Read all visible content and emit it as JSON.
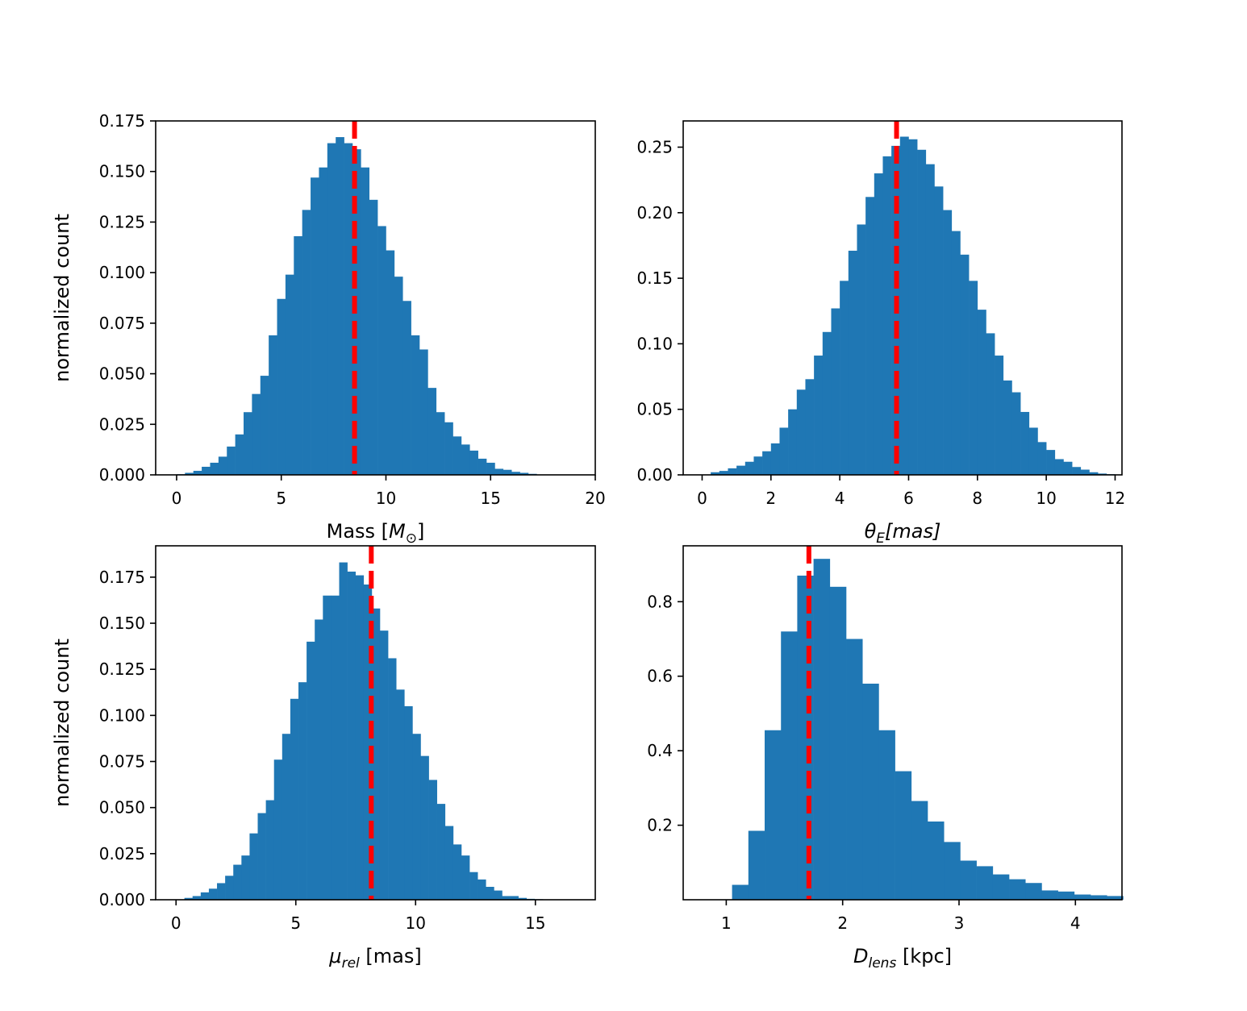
{
  "colors": {
    "bar": "#1f77b4",
    "marker": "#ff0000",
    "axis": "#000000"
  },
  "chart_data": [
    {
      "type": "bar",
      "panel": "top-left",
      "title": "",
      "xlabel": "Mass [M_sun]",
      "xlabel_text": "Mass [",
      "xlabel_symbol": "M",
      "xlabel_sub": "⊙",
      "xlabel_tail": "]",
      "ylabel": "normalized count",
      "xlim": [
        -1,
        20
      ],
      "ylim": [
        0,
        0.175
      ],
      "xticks": [
        0,
        5,
        10,
        15,
        20
      ],
      "xtick_labels": [
        "0",
        "5",
        "10",
        "15",
        "20"
      ],
      "yticks": [
        0,
        0.025,
        0.05,
        0.075,
        0.1,
        0.125,
        0.15,
        0.175
      ],
      "ytick_labels": [
        "0.000",
        "0.025",
        "0.050",
        "0.075",
        "0.100",
        "0.125",
        "0.150",
        "0.175"
      ],
      "bin_start": 0.0,
      "bin_width": 0.4,
      "values": [
        0.0003,
        0.001,
        0.002,
        0.004,
        0.006,
        0.009,
        0.014,
        0.02,
        0.031,
        0.04,
        0.049,
        0.069,
        0.087,
        0.099,
        0.118,
        0.131,
        0.147,
        0.152,
        0.164,
        0.167,
        0.164,
        0.161,
        0.152,
        0.136,
        0.123,
        0.111,
        0.098,
        0.086,
        0.069,
        0.062,
        0.043,
        0.031,
        0.026,
        0.019,
        0.015,
        0.012,
        0.008,
        0.006,
        0.003,
        0.0025,
        0.0015,
        0.001,
        0.0005,
        0.0002,
        0.0001
      ],
      "marker": 8.5
    },
    {
      "type": "bar",
      "panel": "top-right",
      "title": "",
      "xlabel": "θ_E[mas]",
      "xlabel_text": "",
      "xlabel_symbol": "θ",
      "xlabel_sub": "E",
      "xlabel_tail": "[mas]",
      "xlabel_tail_italic": true,
      "ylabel": "",
      "xlim": [
        -0.55,
        12.2
      ],
      "ylim": [
        0,
        0.27
      ],
      "xticks": [
        0,
        2,
        4,
        6,
        8,
        10,
        12
      ],
      "xtick_labels": [
        "0",
        "2",
        "4",
        "6",
        "8",
        "10",
        "12"
      ],
      "yticks": [
        0,
        0.05,
        0.1,
        0.15,
        0.2,
        0.25
      ],
      "ytick_labels": [
        "0.00",
        "0.05",
        "0.10",
        "0.15",
        "0.20",
        "0.25"
      ],
      "bin_start": 0.25,
      "bin_width": 0.25,
      "values": [
        0.002,
        0.003,
        0.005,
        0.007,
        0.01,
        0.014,
        0.018,
        0.024,
        0.036,
        0.05,
        0.065,
        0.073,
        0.091,
        0.109,
        0.127,
        0.148,
        0.171,
        0.191,
        0.212,
        0.23,
        0.243,
        0.251,
        0.258,
        0.256,
        0.248,
        0.237,
        0.22,
        0.202,
        0.186,
        0.168,
        0.148,
        0.126,
        0.108,
        0.091,
        0.072,
        0.063,
        0.048,
        0.036,
        0.025,
        0.019,
        0.012,
        0.01,
        0.006,
        0.004,
        0.002,
        0.001,
        0.0005
      ],
      "marker": 5.65
    },
    {
      "type": "bar",
      "panel": "bottom-left",
      "title": "",
      "xlabel": "μ_rel [mas]",
      "xlabel_text": "",
      "xlabel_symbol": "μ",
      "xlabel_sub": "rel",
      "xlabel_tail": " [mas]",
      "ylabel": "normalized count",
      "xlim": [
        -0.85,
        17.5
      ],
      "ylim": [
        0,
        0.192
      ],
      "xticks": [
        0,
        5,
        10,
        15
      ],
      "xtick_labels": [
        "0",
        "5",
        "10",
        "15"
      ],
      "yticks": [
        0,
        0.025,
        0.05,
        0.075,
        0.1,
        0.125,
        0.15,
        0.175
      ],
      "ytick_labels": [
        "0.000",
        "0.025",
        "0.050",
        "0.075",
        "0.100",
        "0.125",
        "0.150",
        "0.175"
      ],
      "bin_start": 0.35,
      "bin_width": 0.34,
      "values": [
        0.001,
        0.002,
        0.004,
        0.006,
        0.009,
        0.013,
        0.019,
        0.024,
        0.036,
        0.047,
        0.054,
        0.076,
        0.09,
        0.109,
        0.118,
        0.14,
        0.152,
        0.165,
        0.165,
        0.183,
        0.178,
        0.176,
        0.171,
        0.158,
        0.146,
        0.131,
        0.114,
        0.105,
        0.09,
        0.078,
        0.065,
        0.052,
        0.04,
        0.03,
        0.024,
        0.015,
        0.011,
        0.007,
        0.005,
        0.002,
        0.002,
        0.001,
        0.0005,
        0.0003
      ],
      "marker": 8.15
    },
    {
      "type": "bar",
      "panel": "bottom-right",
      "title": "",
      "xlabel": "D_lens [kpc]",
      "xlabel_text": "",
      "xlabel_symbol": "D",
      "xlabel_sub": "lens",
      "xlabel_tail": " [kpc]",
      "ylabel": "",
      "xlim": [
        0.63,
        4.4
      ],
      "ylim": [
        0,
        0.95
      ],
      "xticks": [
        1,
        2,
        3,
        4
      ],
      "xtick_labels": [
        "1",
        "2",
        "3",
        "4"
      ],
      "yticks": [
        0.2,
        0.4,
        0.6,
        0.8
      ],
      "ytick_labels": [
        "0.2",
        "0.4",
        "0.6",
        "0.8"
      ],
      "bin_start": 1.05,
      "bin_width": 0.14,
      "values": [
        0.04,
        0.185,
        0.455,
        0.72,
        0.87,
        0.915,
        0.84,
        0.7,
        0.58,
        0.455,
        0.345,
        0.265,
        0.21,
        0.155,
        0.105,
        0.09,
        0.068,
        0.055,
        0.045,
        0.025,
        0.022,
        0.014,
        0.012,
        0.01
      ],
      "marker": 1.71
    }
  ]
}
